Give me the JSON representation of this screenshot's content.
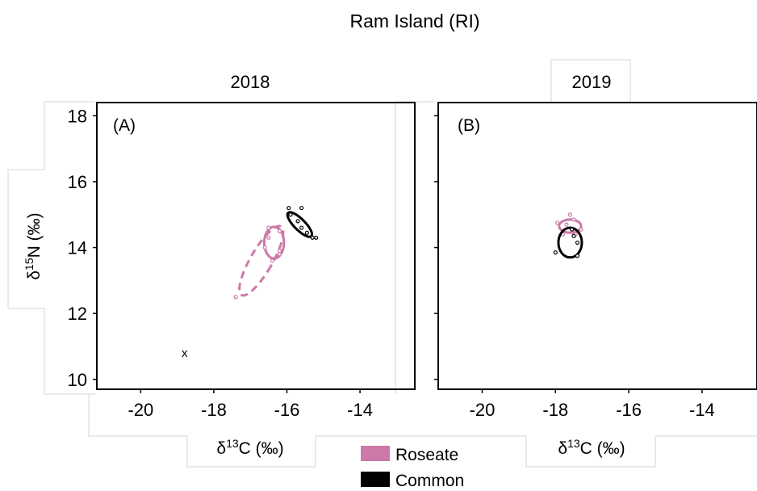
{
  "title": "Ram Island (RI)",
  "legend": {
    "placement": "bottom-center",
    "entries": [
      {
        "label": "Roseate",
        "color": "#cc79a7"
      },
      {
        "label": "Common",
        "color": "#000000"
      }
    ]
  },
  "chart_data": [
    {
      "type": "scatter",
      "panel_label": "(A)",
      "title": "2018",
      "xlabel": "δ13C (‰)",
      "ylabel": "δ15N (‰)",
      "xlim": [
        -21.2,
        -12.5
      ],
      "ylim": [
        9.7,
        18.4
      ],
      "xticks": [
        -20,
        -18,
        -16,
        -14
      ],
      "yticks": [
        10,
        12,
        14,
        16,
        18
      ],
      "grid": false,
      "annotations": [
        {
          "text": "x",
          "x": -18.8,
          "y": 10.8
        }
      ],
      "series": [
        {
          "name": "Roseate",
          "color": "#cc79a7",
          "points": [
            {
              "x": -16.5,
              "y": 14.6
            },
            {
              "x": -16.2,
              "y": 14.5
            },
            {
              "x": -16.5,
              "y": 14.3
            },
            {
              "x": -16.6,
              "y": 14.0
            },
            {
              "x": -16.2,
              "y": 13.9
            },
            {
              "x": -16.2,
              "y": 13.8
            },
            {
              "x": -16.4,
              "y": 13.6
            },
            {
              "x": -17.4,
              "y": 12.5
            }
          ],
          "ellipses": [
            {
              "style": "solid",
              "cx": -16.35,
              "cy": 14.15,
              "rx": 0.27,
              "ry": 0.48,
              "angle": 0
            },
            {
              "style": "dashed",
              "cx": -16.7,
              "cy": 13.6,
              "rx": 0.3,
              "ry": 1.2,
              "angle": 30
            }
          ]
        },
        {
          "name": "Common",
          "color": "#000000",
          "points": [
            {
              "x": -15.95,
              "y": 15.2
            },
            {
              "x": -15.6,
              "y": 15.2
            },
            {
              "x": -15.9,
              "y": 15.0
            },
            {
              "x": -15.7,
              "y": 14.8
            },
            {
              "x": -15.6,
              "y": 14.6
            },
            {
              "x": -15.45,
              "y": 14.45
            },
            {
              "x": -15.3,
              "y": 14.3
            },
            {
              "x": -15.2,
              "y": 14.3
            }
          ],
          "ellipses": [
            {
              "style": "solid",
              "cx": -15.65,
              "cy": 14.7,
              "rx": 0.15,
              "ry": 0.5,
              "angle": -45
            }
          ]
        }
      ]
    },
    {
      "type": "scatter",
      "panel_label": "(B)",
      "title": "2019",
      "xlabel": "δ13C (‰)",
      "ylabel": "",
      "xlim": [
        -21.2,
        -12.5
      ],
      "ylim": [
        9.7,
        18.4
      ],
      "xticks": [
        -20,
        -18,
        -16,
        -14
      ],
      "yticks": [
        10,
        12,
        14,
        16,
        18
      ],
      "grid": false,
      "series": [
        {
          "name": "Roseate",
          "color": "#cc79a7",
          "points": [
            {
              "x": -17.6,
              "y": 15.0
            },
            {
              "x": -17.5,
              "y": 14.85
            },
            {
              "x": -17.95,
              "y": 14.75
            },
            {
              "x": -17.7,
              "y": 14.7
            },
            {
              "x": -17.3,
              "y": 14.55
            },
            {
              "x": -17.8,
              "y": 14.4
            },
            {
              "x": -17.45,
              "y": 14.4
            }
          ],
          "ellipses": [
            {
              "style": "solid",
              "cx": -17.6,
              "cy": 14.65,
              "rx": 0.3,
              "ry": 0.2,
              "angle": 0
            }
          ]
        },
        {
          "name": "Common",
          "color": "#000000",
          "points": [
            {
              "x": -17.55,
              "y": 14.55
            },
            {
              "x": -17.5,
              "y": 14.35
            },
            {
              "x": -17.4,
              "y": 14.15
            },
            {
              "x": -18.0,
              "y": 13.85
            },
            {
              "x": -17.4,
              "y": 13.75
            }
          ],
          "ellipses": [
            {
              "style": "solid",
              "cx": -17.6,
              "cy": 14.15,
              "rx": 0.32,
              "ry": 0.45,
              "angle": 0
            }
          ]
        }
      ]
    }
  ]
}
